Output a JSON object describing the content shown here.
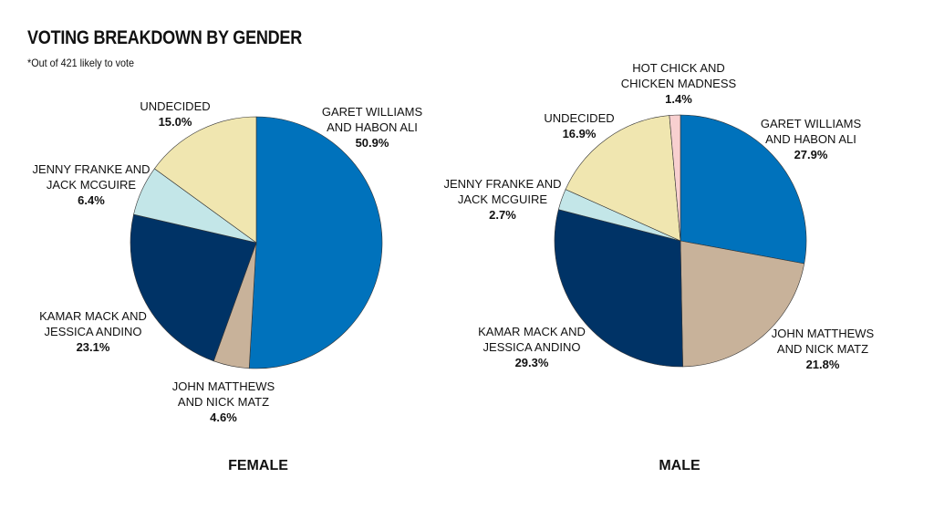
{
  "title": "VOTING BREAKDOWN BY GENDER",
  "subtitle": "*Out of 421 likely to vote",
  "chart_data": [
    {
      "type": "pie",
      "title": "FEMALE",
      "unit": "%",
      "slices": [
        {
          "label": [
            "GARET WILLIAMS",
            "AND HABON ALI"
          ],
          "value": 50.9,
          "value_text": "50.9%",
          "color": "#0072bc"
        },
        {
          "label": [
            "JOHN MATTHEWS",
            "AND NICK MATZ"
          ],
          "value": 4.6,
          "value_text": "4.6%",
          "color": "#c8b29a"
        },
        {
          "label": [
            "KAMAR MACK AND",
            "JESSICA ANDINO"
          ],
          "value": 23.1,
          "value_text": "23.1%",
          "color": "#003366"
        },
        {
          "label": [
            "JENNY FRANKE AND",
            "JACK MCGUIRE"
          ],
          "value": 6.4,
          "value_text": "6.4%",
          "color": "#c3e6e8"
        },
        {
          "label": [
            "UNDECIDED"
          ],
          "value": 15.0,
          "value_text": "15.0%",
          "color": "#f0e6b0"
        }
      ]
    },
    {
      "type": "pie",
      "title": "MALE",
      "unit": "%",
      "slices": [
        {
          "label": [
            "GARET WILLIAMS",
            "AND HABON ALI"
          ],
          "value": 27.9,
          "value_text": "27.9%",
          "color": "#0072bc"
        },
        {
          "label": [
            "JOHN MATTHEWS",
            "AND NICK MATZ"
          ],
          "value": 21.8,
          "value_text": "21.8%",
          "color": "#c8b29a"
        },
        {
          "label": [
            "KAMAR MACK AND",
            "JESSICA ANDINO"
          ],
          "value": 29.3,
          "value_text": "29.3%",
          "color": "#003366"
        },
        {
          "label": [
            "JENNY FRANKE AND",
            "JACK MCGUIRE"
          ],
          "value": 2.7,
          "value_text": "2.7%",
          "color": "#c3e6e8"
        },
        {
          "label": [
            "UNDECIDED"
          ],
          "value": 16.9,
          "value_text": "16.9%",
          "color": "#f0e6b0"
        },
        {
          "label": [
            "HOT CHICK AND",
            "CHICKEN MADNESS"
          ],
          "value": 1.4,
          "value_text": "1.4%",
          "color": "#f8d0d0"
        }
      ]
    }
  ]
}
